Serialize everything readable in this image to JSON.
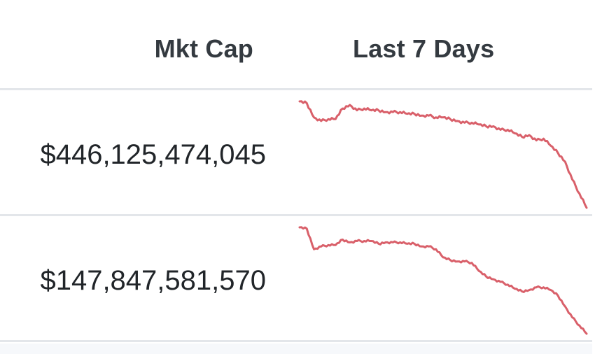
{
  "columns": {
    "mkt_cap": "Mkt Cap",
    "last_7_days": "Last 7 Days"
  },
  "colors": {
    "sparkline_down": "#d9606a",
    "divider": "#e3e6ea"
  },
  "rows": [
    {
      "mkt_cap": "$446,125,474,045",
      "trend": "down",
      "sparkline": [
        100,
        99,
        91,
        89,
        90,
        90,
        96,
        98,
        95,
        96,
        95,
        95,
        94,
        94,
        94,
        93,
        93,
        92,
        92,
        91,
        91,
        90,
        89,
        88,
        88,
        87,
        86,
        86,
        84,
        84,
        82,
        80,
        81,
        78,
        79,
        75,
        71,
        66,
        56,
        48,
        40
      ]
    },
    {
      "mkt_cap": "$147,847,581,570",
      "trend": "down",
      "sparkline": [
        100,
        99,
        84,
        86,
        87,
        87,
        91,
        89,
        90,
        90,
        90,
        88,
        89,
        89,
        89,
        88,
        88,
        86,
        86,
        84,
        78,
        76,
        75,
        75,
        74,
        68,
        64,
        62,
        60,
        58,
        55,
        53,
        54,
        56,
        56,
        54,
        50,
        42,
        34,
        28,
        22
      ]
    }
  ]
}
